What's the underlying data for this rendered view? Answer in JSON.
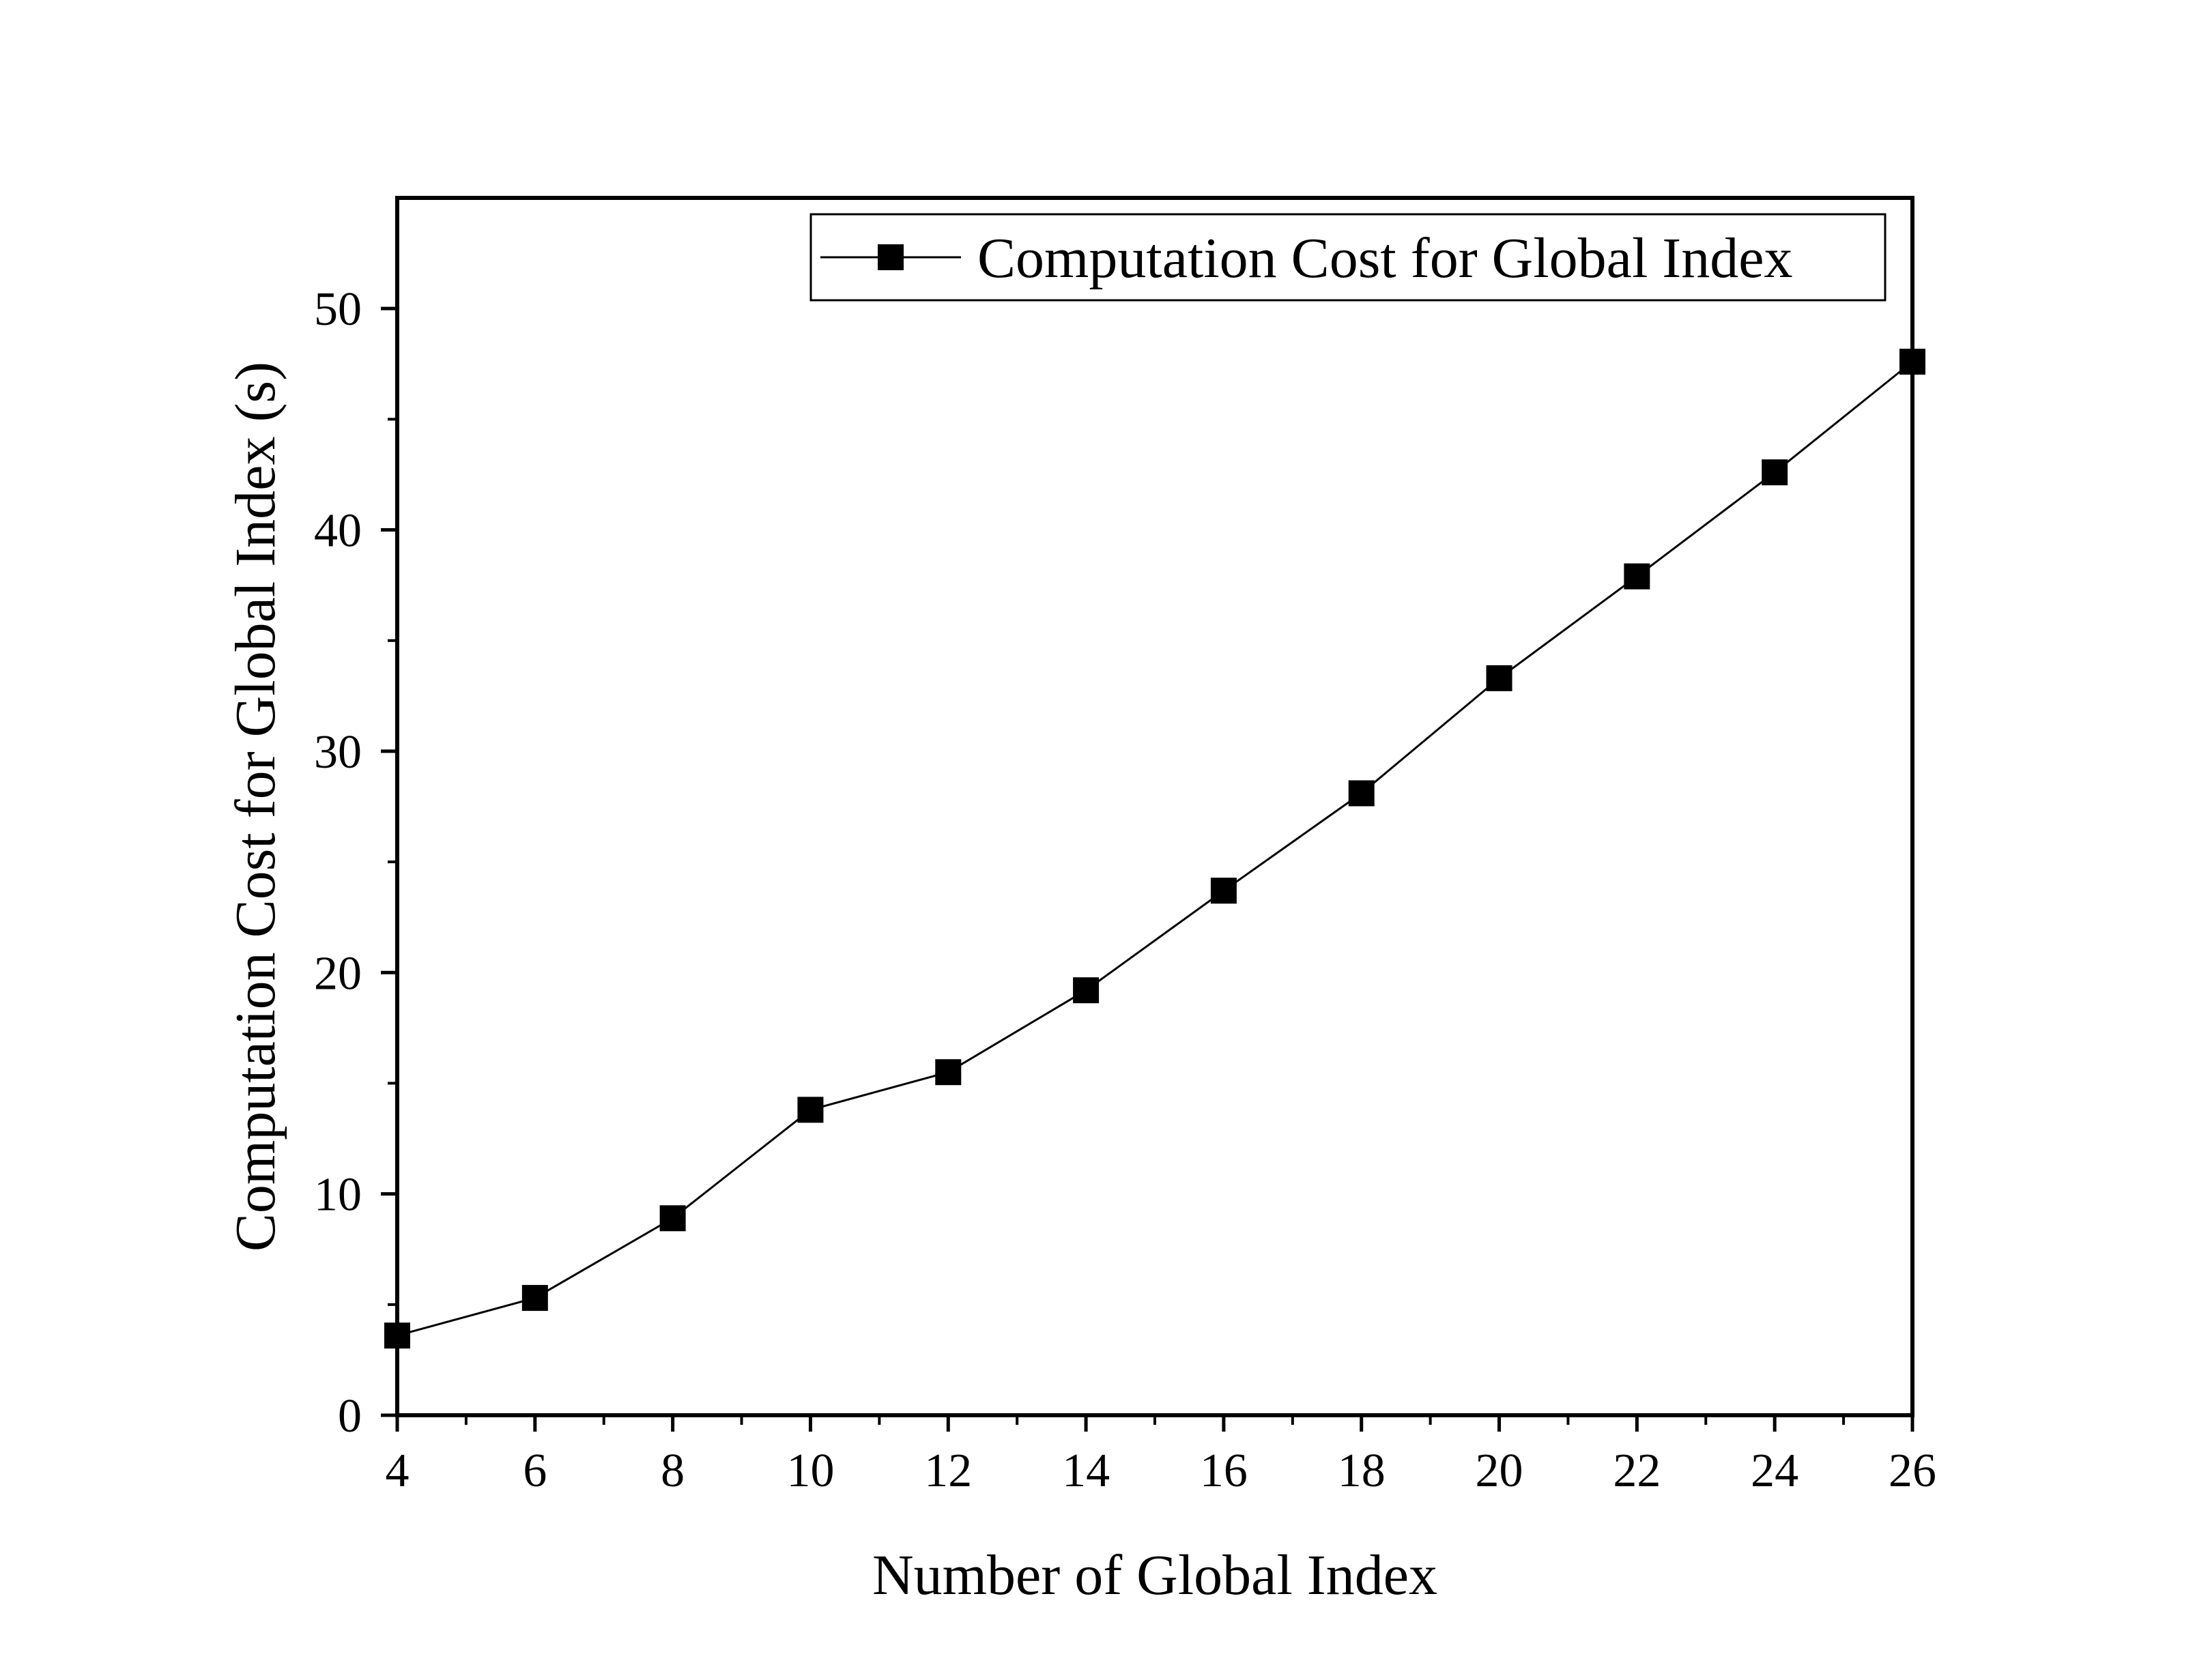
{
  "chart_data": {
    "type": "line",
    "title": "",
    "xlabel": "Number of Global Index",
    "ylabel": "Computation Cost for Global Index (s)",
    "xlim": [
      4,
      26
    ],
    "ylim": [
      0,
      55
    ],
    "x_ticks": [
      4,
      6,
      8,
      10,
      12,
      14,
      16,
      18,
      20,
      22,
      24,
      26
    ],
    "y_ticks": [
      0,
      10,
      20,
      30,
      40,
      50
    ],
    "grid": false,
    "legend_position": "top-right",
    "series": [
      {
        "name": "Computation Cost for Global Index",
        "color": "#000000",
        "marker": "square",
        "x": [
          4,
          6,
          8,
          10,
          12,
          14,
          16,
          18,
          20,
          22,
          24,
          26
        ],
        "y": [
          3.6,
          5.3,
          8.9,
          13.8,
          15.5,
          19.2,
          23.7,
          28.1,
          33.3,
          37.9,
          42.6,
          47.6
        ]
      }
    ]
  }
}
